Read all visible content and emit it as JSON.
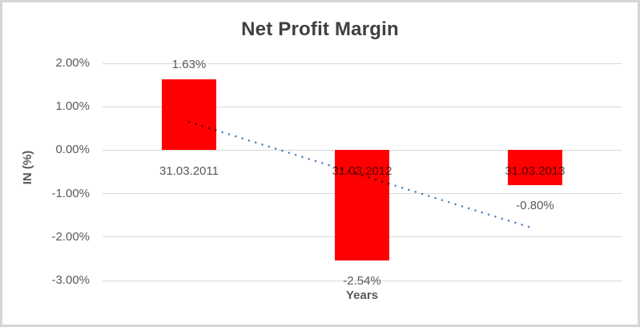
{
  "chart_data": {
    "type": "bar",
    "title": "Net Profit Margin",
    "xlabel": "Years",
    "ylabel": "IN (%)",
    "categories": [
      "31.03.2011",
      "31.03.2012",
      "31.03.2013"
    ],
    "values": [
      1.63,
      -2.54,
      -0.8
    ],
    "data_labels": [
      "1.63%",
      "-2.54%",
      "-0.80%"
    ],
    "ylim": [
      -3,
      2
    ],
    "ytick_labels": [
      "2.00%",
      "1.00%",
      "0.00%",
      "-1.00%",
      "-2.00%",
      "-3.00%"
    ],
    "ytick_values": [
      2,
      1,
      0,
      -1,
      -2,
      -3
    ],
    "grid": true,
    "legend": "none",
    "series_color": "#FF0000",
    "trendline": {
      "type": "linear",
      "style": "dotted",
      "start_value": 0.65,
      "end_value": -1.81
    }
  },
  "colors": {
    "bar": "#FF0000",
    "trendline": "#4E81BD",
    "gridline": "#D9D9D9",
    "title_text": "#404040",
    "axis_text": "#595959",
    "border": "#D5D5D5",
    "background": "#FFFFFF"
  }
}
